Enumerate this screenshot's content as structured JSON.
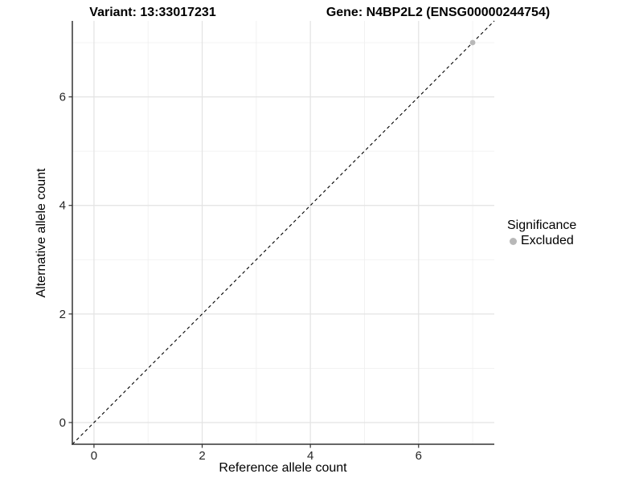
{
  "chart_data": {
    "type": "scatter",
    "title_left": "Variant: 13:33017231",
    "title_right": "Gene: N4BP2L2 (ENSG00000244754)",
    "xlabel": "Reference allele count",
    "ylabel": "Alternative allele count",
    "xlim": [
      -0.4,
      7.4
    ],
    "ylim": [
      -0.4,
      7.4
    ],
    "xticks": [
      0,
      2,
      4,
      6
    ],
    "yticks": [
      0,
      2,
      4,
      6
    ],
    "xticks_minor": [
      1,
      3,
      5,
      7
    ],
    "yticks_minor": [
      1,
      3,
      5,
      7
    ],
    "grid": "major+minor",
    "legend_position": "right",
    "reference_line": {
      "kind": "identity",
      "style": "dashed",
      "color": "#000000"
    },
    "series": [
      {
        "name": "Excluded",
        "color": "#b8b8b8",
        "marker": "circle",
        "points": [
          {
            "x": 7,
            "y": 7
          }
        ]
      }
    ],
    "legend": {
      "title": "Significance",
      "items": [
        {
          "label": "Excluded",
          "color": "#b8b8b8",
          "marker": "circle"
        }
      ]
    }
  },
  "colors": {
    "background": "#ffffff",
    "axis_line": "#333333",
    "grid_major": "#e3e3e3",
    "grid_minor": "#f0f0f0",
    "tick_mark": "#333333",
    "tick_label": "#262626"
  }
}
